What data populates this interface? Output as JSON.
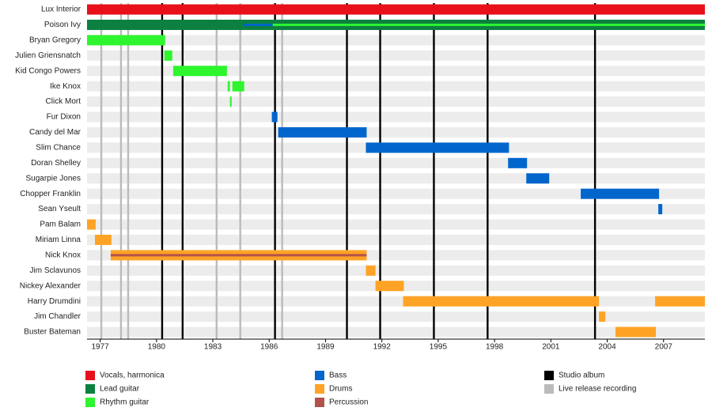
{
  "chart_data": {
    "type": "timeline",
    "xlim": [
      1976.3,
      2009.2
    ],
    "xticks": [
      1977,
      1980,
      1983,
      1986,
      1989,
      1992,
      1995,
      1998,
      2001,
      2004,
      2007
    ],
    "members": [
      {
        "name": "Lux Interior",
        "bars": [
          {
            "color": "#e8101a",
            "start": 1976.3,
            "end": 2009.2
          }
        ]
      },
      {
        "name": "Poison Ivy",
        "bars": [
          {
            "color": "#0b8040",
            "start": 1976.3,
            "end": 2009.2
          }
        ],
        "stripes": [
          {
            "color": "#0066cc",
            "start": 1984.63,
            "end": 1986.19
          },
          {
            "color": "#2ef52e",
            "start": 1986.19,
            "end": 2009.2
          }
        ]
      },
      {
        "name": "Bryan Gregory",
        "bars": [
          {
            "color": "#2ef52e",
            "start": 1976.3,
            "end": 1980.46
          }
        ]
      },
      {
        "name": "Julien Griensnatch",
        "bars": [
          {
            "color": "#2ef52e",
            "start": 1980.42,
            "end": 1980.84
          }
        ]
      },
      {
        "name": "Kid Congo Powers",
        "bars": [
          {
            "color": "#2ef52e",
            "start": 1980.89,
            "end": 1983.75
          }
        ]
      },
      {
        "name": "Ike Knox",
        "bars": [
          {
            "color": "#2ef52e",
            "start": 1983.79,
            "end": 1983.91
          },
          {
            "color": "#2ef52e",
            "start": 1984.04,
            "end": 1984.67
          }
        ]
      },
      {
        "name": "Click Mort",
        "bars": [
          {
            "color": "#2ef52e",
            "start": 1983.91,
            "end": 1984.0
          }
        ]
      },
      {
        "name": "Fur Dixon",
        "bars": [
          {
            "color": "#0066cc",
            "start": 1986.14,
            "end": 1986.44
          }
        ]
      },
      {
        "name": "Candy del Mar",
        "bars": [
          {
            "color": "#0066cc",
            "start": 1986.48,
            "end": 1991.19
          }
        ]
      },
      {
        "name": "Slim Chance",
        "bars": [
          {
            "color": "#0066cc",
            "start": 1991.15,
            "end": 1998.77
          }
        ]
      },
      {
        "name": "Doran Shelley",
        "bars": [
          {
            "color": "#0066cc",
            "start": 1998.72,
            "end": 1999.73
          }
        ]
      },
      {
        "name": "Sugarpie Jones",
        "bars": [
          {
            "color": "#0066cc",
            "start": 1999.69,
            "end": 2000.91
          }
        ]
      },
      {
        "name": "Chopper Franklin",
        "bars": [
          {
            "color": "#0066cc",
            "start": 2002.59,
            "end": 2006.76
          }
        ]
      },
      {
        "name": "Sean Yseult",
        "bars": [
          {
            "color": "#0066cc",
            "start": 2006.72,
            "end": 2006.93
          }
        ]
      },
      {
        "name": "Pam Balam",
        "bars": [
          {
            "color": "#ffa326",
            "start": 1976.3,
            "end": 1976.76
          }
        ]
      },
      {
        "name": "Miriam Linna",
        "bars": [
          {
            "color": "#ffa326",
            "start": 1976.72,
            "end": 1977.6
          }
        ]
      },
      {
        "name": "Nick Knox",
        "bars": [
          {
            "color": "#ffa326",
            "start": 1977.56,
            "end": 1991.19
          }
        ],
        "stripes": [
          {
            "color": "#b3524a",
            "start": 1977.56,
            "end": 1991.19
          }
        ]
      },
      {
        "name": "Jim Sclavunos",
        "bars": [
          {
            "color": "#ffa326",
            "start": 1991.15,
            "end": 1991.66
          }
        ]
      },
      {
        "name": "Nickey Alexander",
        "bars": [
          {
            "color": "#ffa326",
            "start": 1991.66,
            "end": 1993.17
          }
        ]
      },
      {
        "name": "Harry Drumdini",
        "bars": [
          {
            "color": "#ffa326",
            "start": 1993.13,
            "end": 2003.56
          },
          {
            "color": "#ffa326",
            "start": 2006.55,
            "end": 2009.2
          }
        ]
      },
      {
        "name": "Jim Chandler",
        "bars": [
          {
            "color": "#ffa326",
            "start": 2003.56,
            "end": 2003.9
          }
        ]
      },
      {
        "name": "Buster Bateman",
        "bars": [
          {
            "color": "#ffa326",
            "start": 2004.44,
            "end": 2006.59
          }
        ]
      }
    ],
    "lines": [
      {
        "name": "Live release recording",
        "color": "#bbbbbb",
        "x": [
          1977.06,
          1978.11,
          1978.49,
          1983.2,
          1984.46,
          1986.69
        ]
      },
      {
        "name": "Studio album",
        "color": "#000000",
        "x": [
          1980.3,
          1981.39,
          1986.31,
          1990.14,
          1991.91,
          1994.77,
          1997.63,
          2003.35
        ]
      }
    ],
    "legend": [
      {
        "name": "Vocals, harmonica",
        "color": "#e8101a"
      },
      {
        "name": "Lead guitar",
        "color": "#0b8040"
      },
      {
        "name": "Rhythm guitar",
        "color": "#2ef52e"
      },
      {
        "name": "Bass",
        "color": "#0066cc"
      },
      {
        "name": "Drums",
        "color": "#ffa326"
      },
      {
        "name": "Percussion",
        "color": "#b3524a"
      },
      {
        "name": "Studio album",
        "color": "#000000"
      },
      {
        "name": "Live release recording",
        "color": "#bbbbbb"
      }
    ]
  }
}
